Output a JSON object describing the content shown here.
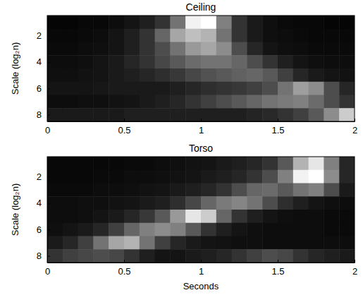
{
  "chart_data": [
    {
      "type": "heatmap",
      "title": "Ceiling",
      "y_label": "Scale (log₂n)",
      "xbins": [
        0,
        0.1,
        0.2,
        0.3,
        0.4,
        0.5,
        0.6,
        0.7,
        0.8,
        0.9,
        1,
        1.1,
        1.2,
        1.3,
        1.4,
        1.5,
        1.6,
        1.7,
        1.8,
        1.9,
        2
      ],
      "ybins": [
        0.5,
        1.5,
        2.5,
        3.5,
        4.5,
        5.5,
        6.5,
        7.5,
        8.5
      ],
      "xlim": [
        0,
        2
      ],
      "ylim": [
        0.5,
        8.5
      ],
      "xticks": [
        0,
        0.5,
        1,
        1.5,
        2
      ],
      "yticks": [
        2,
        4,
        6,
        8
      ],
      "zlim": [
        0,
        1
      ],
      "cells": [
        [
          0.02,
          0.02,
          0.03,
          0.03,
          0.05,
          0.08,
          0.12,
          0.2,
          0.45,
          0.95,
          1.0,
          0.5,
          0.2,
          0.1,
          0.06,
          0.04,
          0.03,
          0.03,
          0.02,
          0.02
        ],
        [
          0.03,
          0.03,
          0.04,
          0.05,
          0.08,
          0.12,
          0.2,
          0.4,
          0.65,
          0.75,
          0.7,
          0.45,
          0.2,
          0.1,
          0.06,
          0.05,
          0.04,
          0.03,
          0.03,
          0.03
        ],
        [
          0.04,
          0.04,
          0.05,
          0.06,
          0.08,
          0.12,
          0.2,
          0.3,
          0.45,
          0.6,
          0.65,
          0.55,
          0.3,
          0.15,
          0.08,
          0.06,
          0.05,
          0.04,
          0.04,
          0.04
        ],
        [
          0.05,
          0.05,
          0.06,
          0.08,
          0.1,
          0.15,
          0.2,
          0.28,
          0.35,
          0.42,
          0.45,
          0.45,
          0.4,
          0.3,
          0.2,
          0.12,
          0.08,
          0.06,
          0.05,
          0.05
        ],
        [
          0.06,
          0.06,
          0.07,
          0.08,
          0.1,
          0.12,
          0.15,
          0.18,
          0.22,
          0.28,
          0.32,
          0.35,
          0.38,
          0.4,
          0.35,
          0.25,
          0.15,
          0.1,
          0.08,
          0.07
        ],
        [
          0.08,
          0.08,
          0.08,
          0.09,
          0.1,
          0.1,
          0.1,
          0.1,
          0.12,
          0.15,
          0.18,
          0.2,
          0.22,
          0.25,
          0.3,
          0.45,
          0.62,
          0.55,
          0.3,
          0.15
        ],
        [
          0.05,
          0.05,
          0.06,
          0.06,
          0.07,
          0.08,
          0.1,
          0.12,
          0.15,
          0.2,
          0.25,
          0.3,
          0.35,
          0.4,
          0.45,
          0.48,
          0.5,
          0.42,
          0.3,
          0.2
        ],
        [
          0.1,
          0.1,
          0.1,
          0.1,
          0.1,
          0.12,
          0.12,
          0.12,
          0.12,
          0.12,
          0.12,
          0.12,
          0.12,
          0.14,
          0.16,
          0.2,
          0.25,
          0.35,
          0.55,
          0.8
        ]
      ]
    },
    {
      "type": "heatmap",
      "title": "Torso",
      "y_label": "Scale (log₂n)",
      "x_label": "Seconds",
      "xbins": [
        0,
        0.1,
        0.2,
        0.3,
        0.4,
        0.5,
        0.6,
        0.7,
        0.8,
        0.9,
        1,
        1.1,
        1.2,
        1.3,
        1.4,
        1.5,
        1.6,
        1.7,
        1.8,
        1.9,
        2
      ],
      "ybins": [
        0.5,
        1.5,
        2.5,
        3.5,
        4.5,
        5.5,
        6.5,
        7.5,
        8.5
      ],
      "xlim": [
        0,
        2
      ],
      "ylim": [
        0.5,
        8.5
      ],
      "xticks": [
        0,
        0.5,
        1,
        1.5,
        2
      ],
      "yticks": [
        2,
        4,
        6,
        8
      ],
      "zlim": [
        0,
        1
      ],
      "cells": [
        [
          0.03,
          0.03,
          0.03,
          0.03,
          0.03,
          0.04,
          0.04,
          0.05,
          0.06,
          0.07,
          0.08,
          0.1,
          0.12,
          0.15,
          0.2,
          0.35,
          0.7,
          0.9,
          0.5,
          0.15
        ],
        [
          0.03,
          0.03,
          0.03,
          0.04,
          0.04,
          0.05,
          0.05,
          0.06,
          0.07,
          0.08,
          0.1,
          0.12,
          0.15,
          0.2,
          0.3,
          0.5,
          0.95,
          1.0,
          0.55,
          0.15
        ],
        [
          0.04,
          0.04,
          0.04,
          0.05,
          0.05,
          0.06,
          0.07,
          0.08,
          0.1,
          0.12,
          0.15,
          0.2,
          0.3,
          0.4,
          0.42,
          0.35,
          0.45,
          0.5,
          0.3,
          0.1
        ],
        [
          0.05,
          0.05,
          0.06,
          0.06,
          0.07,
          0.08,
          0.1,
          0.12,
          0.18,
          0.28,
          0.4,
          0.48,
          0.52,
          0.45,
          0.3,
          0.18,
          0.12,
          0.08,
          0.06,
          0.05
        ],
        [
          0.05,
          0.05,
          0.06,
          0.08,
          0.1,
          0.15,
          0.22,
          0.35,
          0.6,
          0.9,
          0.8,
          0.4,
          0.2,
          0.12,
          0.08,
          0.06,
          0.05,
          0.05,
          0.04,
          0.04
        ],
        [
          0.06,
          0.08,
          0.1,
          0.15,
          0.25,
          0.4,
          0.5,
          0.55,
          0.5,
          0.35,
          0.2,
          0.12,
          0.08,
          0.06,
          0.05,
          0.05,
          0.05,
          0.05,
          0.04,
          0.04
        ],
        [
          0.1,
          0.15,
          0.25,
          0.45,
          0.65,
          0.7,
          0.45,
          0.25,
          0.15,
          0.1,
          0.08,
          0.07,
          0.06,
          0.06,
          0.05,
          0.05,
          0.05,
          0.05,
          0.05,
          0.05
        ],
        [
          0.2,
          0.25,
          0.28,
          0.3,
          0.28,
          0.2,
          0.12,
          0.08,
          0.08,
          0.1,
          0.12,
          0.15,
          0.2,
          0.25,
          0.3,
          0.28,
          0.2,
          0.15,
          0.12,
          0.1
        ]
      ]
    }
  ]
}
